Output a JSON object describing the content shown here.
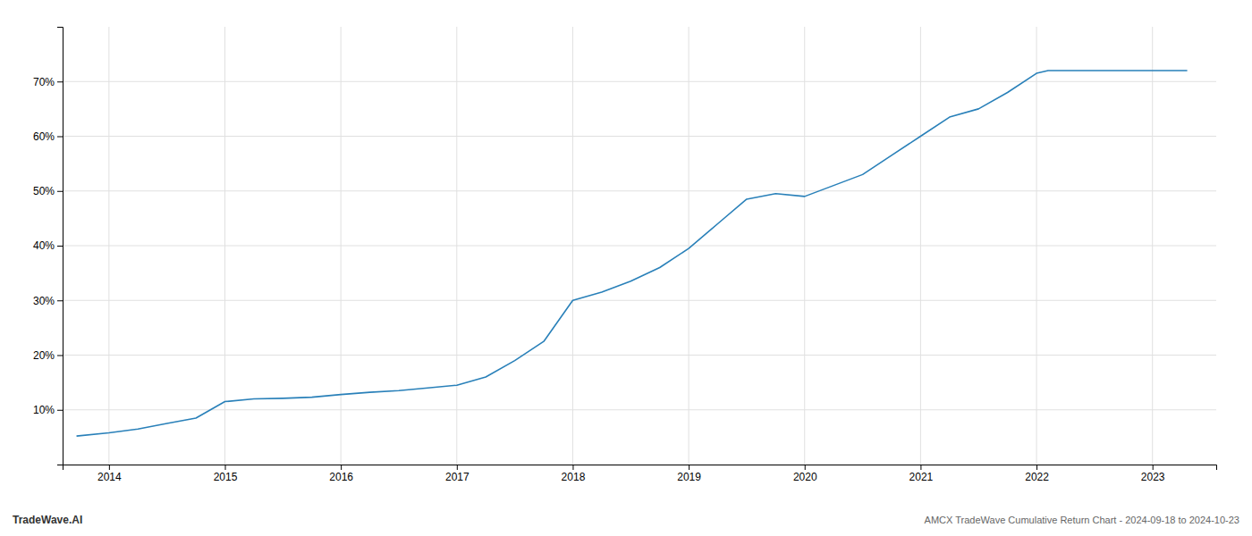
{
  "chart_data": {
    "type": "line",
    "x": [
      2013.72,
      2014.0,
      2014.25,
      2014.5,
      2014.75,
      2015.0,
      2015.25,
      2015.5,
      2015.75,
      2016.0,
      2016.25,
      2016.5,
      2016.75,
      2017.0,
      2017.25,
      2017.5,
      2017.75,
      2018.0,
      2018.25,
      2018.5,
      2018.75,
      2019.0,
      2019.25,
      2019.5,
      2019.75,
      2020.0,
      2020.25,
      2020.5,
      2020.75,
      2021.0,
      2021.25,
      2021.5,
      2021.75,
      2022.0,
      2022.1,
      2022.25,
      2022.5,
      2022.75,
      2023.0,
      2023.3
    ],
    "values": [
      5.2,
      5.8,
      6.5,
      7.5,
      8.5,
      11.5,
      12.0,
      12.1,
      12.3,
      12.8,
      13.2,
      13.5,
      14.0,
      14.5,
      16.0,
      19.0,
      22.5,
      30.0,
      31.5,
      33.5,
      36.0,
      39.5,
      44.0,
      48.5,
      49.5,
      49.0,
      51.0,
      53.0,
      56.5,
      60.0,
      63.5,
      65.0,
      68.0,
      71.5,
      72.0,
      72.0,
      72.0,
      72.0,
      72.0,
      72.0
    ],
    "color": "#2980b9",
    "xlim": [
      2013.6,
      2023.55
    ],
    "xticks": [
      2014,
      2015,
      2016,
      2017,
      2018,
      2019,
      2020,
      2021,
      2022,
      2023
    ],
    "ylim": [
      0,
      80
    ],
    "yticks": [
      {
        "value": 10,
        "label": "10%"
      },
      {
        "value": 20,
        "label": "20%"
      },
      {
        "value": 30,
        "label": "30%"
      },
      {
        "value": 40,
        "label": "40%"
      },
      {
        "value": 50,
        "label": "50%"
      },
      {
        "value": 60,
        "label": "60%"
      },
      {
        "value": 70,
        "label": "70%"
      }
    ],
    "grid": true,
    "annotations": [
      "TradeWave.AI",
      "AMCX TradeWave Cumulative Return Chart - 2024-09-18 to 2024-10-23"
    ]
  }
}
